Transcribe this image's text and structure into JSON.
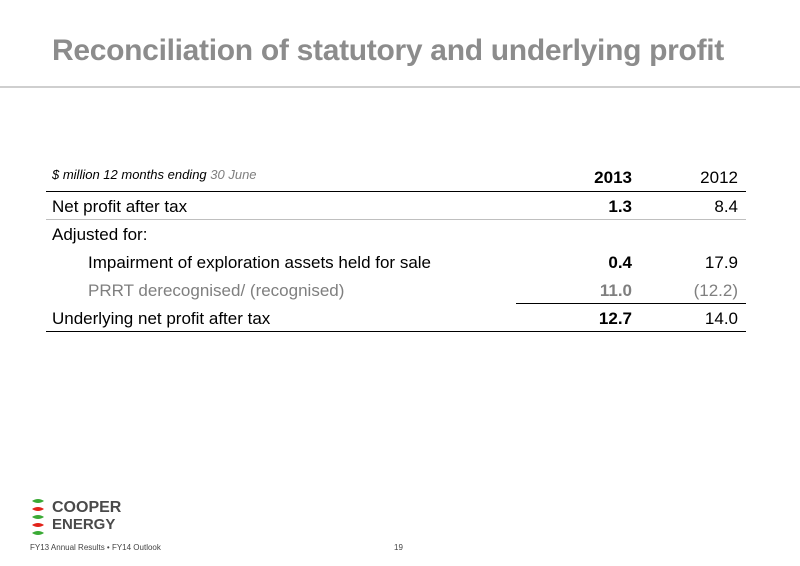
{
  "title": "Reconciliation of statutory and underlying profit",
  "table": {
    "header": {
      "label_part1": "$ million 12 months ending ",
      "label_part2": "30 June",
      "col1": "2013",
      "col2": "2012"
    },
    "rows": [
      {
        "label": "Net profit after tax",
        "v2013": "1.3",
        "v2012": "8.4"
      },
      {
        "label": "Adjusted for:",
        "v2013": "",
        "v2012": ""
      },
      {
        "label": "Impairment of exploration assets held for sale",
        "v2013": "0.4",
        "v2012": "17.9"
      },
      {
        "label": "PRRT derecognised/ (recognised)",
        "v2013": "11.0",
        "v2012": "(12.2)"
      },
      {
        "label": "Underlying net profit after tax",
        "v2013": "12.7",
        "v2012": "14.0"
      }
    ]
  },
  "footer": {
    "logo_line1": "COOPER",
    "logo_line2": "ENERGY",
    "text": "FY13 Annual Results • FY14 Outlook",
    "page": "19"
  },
  "colors": {
    "title": "#8c8c8c",
    "logo_green": "#3aaa35",
    "logo_red": "#e2231a"
  }
}
